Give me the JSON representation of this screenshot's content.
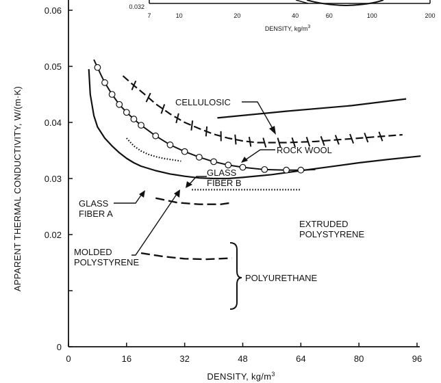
{
  "chart_data": {
    "type": "line",
    "xlabel": "DENSITY, kg/m",
    "xlabel_sup": "3",
    "ylabel": "APPARENT THERMAL CONDUCTIVITY, W/(m·K)",
    "xlim": [
      0,
      96
    ],
    "ylim": [
      0,
      0.06
    ],
    "x_ticks": [
      0,
      16,
      32,
      48,
      64,
      80,
      96
    ],
    "x_tick_labels": [
      "0",
      "16",
      "32",
      "48",
      "64",
      "80",
      "96"
    ],
    "y_ticks": [
      0,
      0.01,
      0.02,
      0.03,
      0.04,
      0.05,
      0.06
    ],
    "y_tick_labels": [
      "0",
      "",
      "0.02",
      "0.03",
      "0.04",
      "0.05",
      "0.06"
    ],
    "grid": false,
    "series": [
      {
        "name": "GLASS FIBER A",
        "style": "solid",
        "points": [
          [
            5.6,
            0.0495
          ],
          [
            6,
            0.045
          ],
          [
            7,
            0.0412
          ],
          [
            8,
            0.0392
          ],
          [
            10,
            0.0372
          ],
          [
            12,
            0.0358
          ],
          [
            14,
            0.0346
          ],
          [
            16,
            0.0336
          ],
          [
            18,
            0.0328
          ],
          [
            20,
            0.0322
          ],
          [
            24,
            0.0314
          ],
          [
            28,
            0.0308
          ],
          [
            32,
            0.0304
          ],
          [
            36,
            0.0301
          ],
          [
            40,
            0.03
          ],
          [
            44,
            0.03
          ],
          [
            48,
            0.0302
          ],
          [
            56,
            0.0307
          ],
          [
            64,
            0.0314
          ],
          [
            72,
            0.0321
          ],
          [
            80,
            0.0328
          ],
          [
            88,
            0.0334
          ],
          [
            97,
            0.034
          ]
        ]
      },
      {
        "name": "GLASS FIBER B",
        "style": "solid-circles",
        "points": [
          [
            7,
            0.0512
          ],
          [
            8,
            0.0498
          ],
          [
            9,
            0.0484
          ],
          [
            10,
            0.0471
          ],
          [
            12,
            0.045
          ],
          [
            14,
            0.0432
          ],
          [
            16,
            0.0418
          ],
          [
            18,
            0.0406
          ],
          [
            20,
            0.0395
          ],
          [
            24,
            0.0376
          ],
          [
            28,
            0.036
          ],
          [
            32,
            0.0348
          ],
          [
            36,
            0.0338
          ],
          [
            40,
            0.033
          ],
          [
            44,
            0.0324
          ],
          [
            48,
            0.032
          ],
          [
            54,
            0.0316
          ],
          [
            60,
            0.0315
          ],
          [
            64,
            0.0315
          ],
          [
            68,
            0.0316
          ]
        ],
        "markers_at": [
          8,
          10,
          12,
          14,
          16,
          18,
          20,
          24,
          28,
          32,
          36,
          40,
          44,
          48,
          54,
          60,
          64
        ]
      },
      {
        "name": "ROCK WOOL",
        "style": "dashed-ticks",
        "points": [
          [
            15,
            0.0483
          ],
          [
            18,
            0.0466
          ],
          [
            21,
            0.045
          ],
          [
            24,
            0.0433
          ],
          [
            28,
            0.0415
          ],
          [
            32,
            0.04
          ],
          [
            36,
            0.0389
          ],
          [
            40,
            0.0379
          ],
          [
            44,
            0.0372
          ],
          [
            48,
            0.0367
          ],
          [
            52,
            0.0364
          ],
          [
            56,
            0.0364
          ],
          [
            60,
            0.0364
          ],
          [
            64,
            0.0365
          ],
          [
            68,
            0.0366
          ],
          [
            72,
            0.0368
          ],
          [
            76,
            0.037
          ],
          [
            80,
            0.0372
          ],
          [
            84,
            0.0374
          ],
          [
            88,
            0.0376
          ],
          [
            92,
            0.0378
          ]
        ],
        "ticks_at": [
          18,
          22,
          26,
          30,
          34,
          38,
          42,
          46,
          50,
          54,
          58,
          62,
          66,
          70,
          74,
          78,
          82,
          86
        ]
      },
      {
        "name": "CELLULOSIC",
        "style": "solid",
        "points": [
          [
            41,
            0.0408
          ],
          [
            60,
            0.042
          ],
          [
            78,
            0.043
          ],
          [
            93,
            0.0442
          ]
        ]
      },
      {
        "name": "MOLDED POLYSTYRENE",
        "style": "dotted",
        "points": [
          [
            16,
            0.0372
          ],
          [
            18,
            0.0358
          ],
          [
            20,
            0.0349
          ],
          [
            22,
            0.0343
          ],
          [
            24,
            0.0339
          ],
          [
            26,
            0.0336
          ],
          [
            28,
            0.0334
          ],
          [
            30,
            0.0332
          ],
          [
            31,
            0.0331
          ]
        ]
      },
      {
        "name": "EXTRUDED POLYSTYRENE",
        "style": "dotted",
        "points": [
          [
            34,
            0.028
          ],
          [
            64,
            0.028
          ]
        ]
      },
      {
        "name": "POLYURETHANE",
        "style": "dashed",
        "points": [
          [
            24,
            0.0265
          ],
          [
            30,
            0.0257
          ],
          [
            36,
            0.0254
          ],
          [
            42,
            0.0254
          ],
          [
            45,
            0.0257
          ]
        ]
      },
      {
        "name": "POLYURETHANE",
        "style": "dashed",
        "points": [
          [
            20,
            0.0167
          ],
          [
            26,
            0.0161
          ],
          [
            32,
            0.0157
          ],
          [
            38,
            0.0156
          ],
          [
            45,
            0.0158
          ]
        ]
      }
    ],
    "annotations": [
      {
        "text": "CELLULOSIC"
      },
      {
        "text": "ROCK WOOL"
      },
      {
        "text": "GLASS",
        "text2": "FIBER B"
      },
      {
        "text": "GLASS",
        "text2": "FIBER A"
      },
      {
        "text": "MOLDED",
        "text2": "POLYSTYRENE"
      },
      {
        "text": "EXTRUDED",
        "text2": "POLYSTYRENE"
      },
      {
        "text": "POLYURETHANE"
      }
    ],
    "inset": {
      "y_tick_label": "0.032",
      "x_tick_labels": [
        "7",
        "10",
        "20",
        "40",
        "60",
        "100",
        "200"
      ],
      "x_ticks": [
        7,
        10,
        20,
        40,
        60,
        100,
        200
      ],
      "xlabel": "DENSITY, kg/m",
      "xlabel_sup": "3",
      "scale": "log"
    }
  }
}
